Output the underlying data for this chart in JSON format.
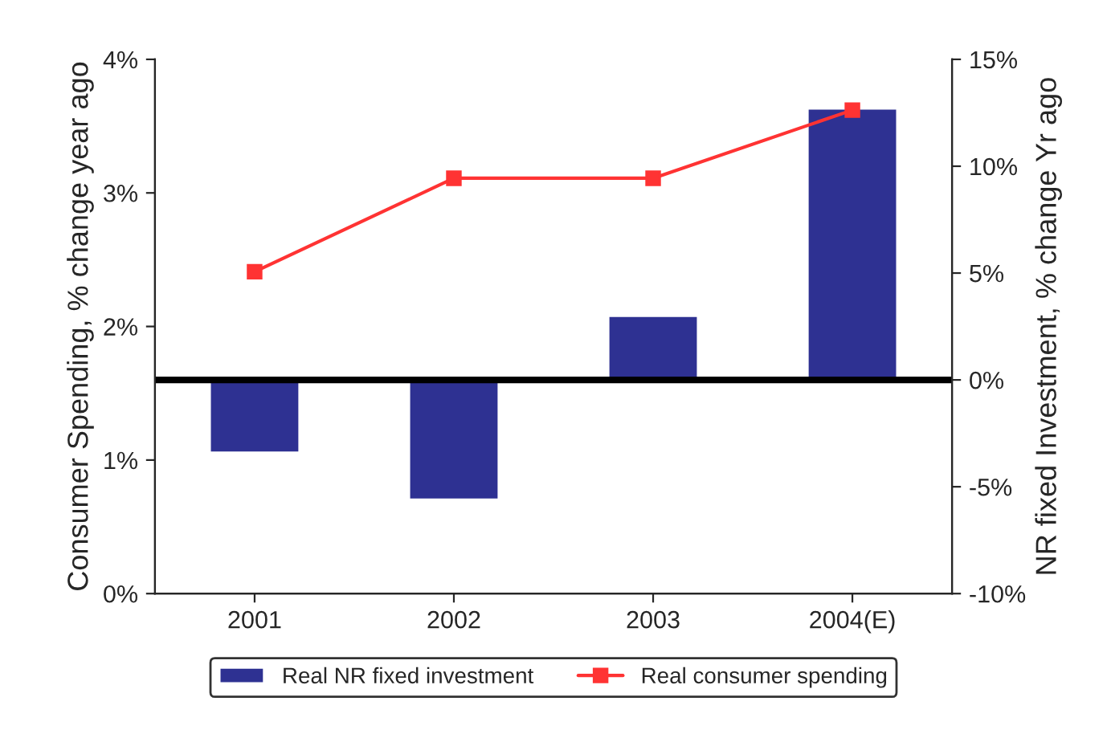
{
  "chart_data": {
    "type": "bar",
    "categories": [
      "2001",
      "2002",
      "2003",
      "2004(E)"
    ],
    "ylabel": "Consumer Spending, % change year ago",
    "y2label": "NR fixed Investment, % change Yr ago",
    "ylim": [
      0,
      4
    ],
    "yticks": [
      {
        "value": 0,
        "label": "0%"
      },
      {
        "value": 1,
        "label": "1%"
      },
      {
        "value": 2,
        "label": "2%"
      },
      {
        "value": 3,
        "label": "3%"
      },
      {
        "value": 4,
        "label": "4%"
      }
    ],
    "y2lim": [
      -10,
      15
    ],
    "y2ticks": [
      {
        "value": -10,
        "label": "-10%"
      },
      {
        "value": -5,
        "label": "-5%"
      },
      {
        "value": 0,
        "label": "0%"
      },
      {
        "value": 5,
        "label": "5%"
      },
      {
        "value": 10,
        "label": "10%"
      },
      {
        "value": 15,
        "label": "15%"
      }
    ],
    "series": [
      {
        "name": "Real NR fixed investment",
        "axis": "y2",
        "color": "#2e3192",
        "values": [
          -3.4,
          -5.6,
          3.0,
          12.7
        ]
      },
      {
        "name": "Real consumer spending",
        "type": "line",
        "axis": "y",
        "color": "#ff3333",
        "marker": "square",
        "values": [
          2.41,
          3.11,
          3.11,
          3.62
        ]
      }
    ],
    "ref_lines": [
      {
        "axis": "y2",
        "value": 0,
        "color": "#000000"
      }
    ],
    "legend": "bottom",
    "grid": false
  }
}
